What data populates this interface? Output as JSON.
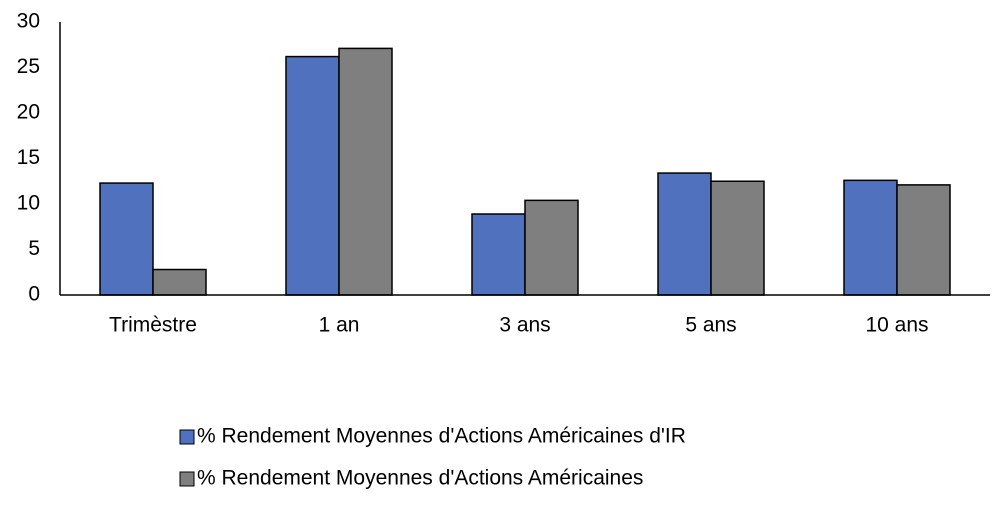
{
  "chart_data": {
    "type": "bar",
    "categories": [
      "Trimèstre",
      "1 an",
      "3 ans",
      "5 ans",
      "10 ans"
    ],
    "series": [
      {
        "name": "% Rendement Moyennes d'Actions Américaines d'IR",
        "color": "#4f71be",
        "values": [
          12.3,
          26.2,
          8.9,
          13.4,
          12.6
        ]
      },
      {
        "name": "% Rendement Moyennes d'Actions Américaines",
        "color": "#7f7f7f",
        "values": [
          2.8,
          27.1,
          10.4,
          12.5,
          12.1
        ]
      }
    ],
    "ylim": [
      0,
      30
    ],
    "yticks": [
      0,
      5,
      10,
      15,
      20,
      25,
      30
    ],
    "grid": false,
    "legend": "bottom"
  }
}
